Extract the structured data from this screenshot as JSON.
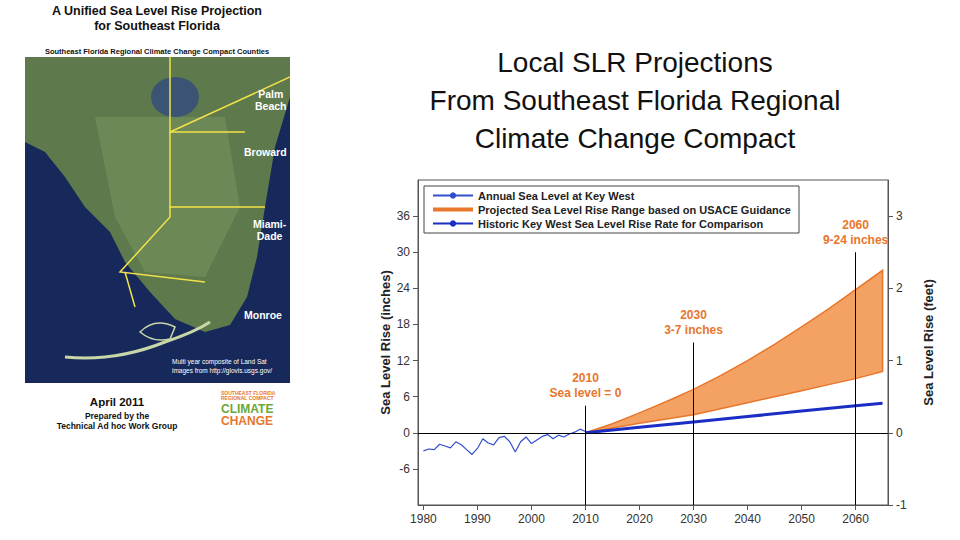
{
  "slide_title": [
    "Local SLR Projections",
    "From Southeast Florida Regional",
    "Climate Change Compact"
  ],
  "cover": {
    "title": [
      "A Unified Sea Level Rise Projection",
      "for Southeast Florida"
    ],
    "subtitle": "Southeast Florida Regional Climate Change Compact Counties",
    "counties": [
      [
        "Palm",
        "Beach"
      ],
      [
        "Broward"
      ],
      [
        "Miami-",
        "Dade"
      ],
      [
        "Monroe"
      ]
    ],
    "image_credit": [
      "Multi year composite of Land Sat",
      "images from http://glovis.usgs.gov/"
    ],
    "date": "April 2011",
    "prepared_by": [
      "Prepared by the",
      "Technical Ad hoc Work Group"
    ],
    "logo": [
      "SOUTHEAST FLORIDA",
      "REGIONAL COMPACT",
      "CLIMATE",
      "CHANGE"
    ]
  },
  "chart_data": {
    "type": "line",
    "ylabel": "Sea Level Rise (inches)",
    "y2label": "Sea Level Rise (feet)",
    "xlim": [
      1979,
      2066
    ],
    "xticks": [
      1980,
      1990,
      2000,
      2010,
      2020,
      2030,
      2040,
      2050,
      2060
    ],
    "ylim": [
      -12,
      42
    ],
    "yticks": [
      -6,
      0,
      6,
      12,
      18,
      24,
      30,
      36
    ],
    "y2lim": [
      -1,
      3.5
    ],
    "y2ticks": [
      -1,
      0,
      1,
      2,
      3
    ],
    "grid": false,
    "legend": "upper left",
    "baseline": 0,
    "series": [
      {
        "name": "Annual Sea Level at Key West",
        "type": "line",
        "color": "#3050cc",
        "x": [
          1980,
          1981,
          1982,
          1983,
          1984,
          1985,
          1986,
          1987,
          1988,
          1989,
          1990,
          1991,
          1992,
          1993,
          1994,
          1995,
          1996,
          1997,
          1998,
          1999,
          2000,
          2001,
          2002,
          2003,
          2004,
          2005,
          2006,
          2007,
          2008,
          2009,
          2010
        ],
        "values": [
          -3,
          -2.7,
          -2.8,
          -1.9,
          -2.2,
          -2.5,
          -1.5,
          -2,
          -2.8,
          -3.6,
          -2.6,
          -1,
          -1.7,
          -2,
          -0.8,
          -0.6,
          -1.5,
          -3.2,
          -1.5,
          -0.7,
          -1.8,
          -1.2,
          -0.6,
          -0.3,
          -1,
          -0.4,
          -0.7,
          -0.2,
          0.1,
          0.6,
          0.2
        ]
      },
      {
        "name": "Projected Sea Level Rise Range based on USACE Guidance",
        "type": "band",
        "color": "#f4a263",
        "x": [
          2010,
          2015,
          2020,
          2025,
          2030,
          2035,
          2040,
          2045,
          2050,
          2055,
          2060,
          2065
        ],
        "lower": [
          0,
          0.8,
          1.6,
          2.3,
          3,
          4,
          5,
          6,
          7,
          8,
          9,
          10.2
        ],
        "upper": [
          0,
          1.5,
          3.3,
          5.2,
          7.2,
          9.5,
          12,
          14.7,
          17.6,
          20.6,
          23.8,
          27
        ]
      },
      {
        "name": "Historic Key West Sea Level Rise Rate for Comparison",
        "type": "line",
        "color": "#1a2ec4",
        "x": [
          2010,
          2020,
          2030,
          2040,
          2050,
          2060,
          2065
        ],
        "values": [
          0,
          0.9,
          1.8,
          2.7,
          3.6,
          4.5,
          4.9
        ]
      }
    ],
    "annotations": [
      {
        "x": 2010,
        "y": 4.5,
        "text": [
          "2010",
          "Sea level = 0"
        ]
      },
      {
        "x": 2030,
        "y": 15,
        "text": [
          "2030",
          "3-7 inches"
        ]
      },
      {
        "x": 2060,
        "y": 30,
        "text": [
          "2060",
          "9-24 inches"
        ]
      }
    ]
  }
}
